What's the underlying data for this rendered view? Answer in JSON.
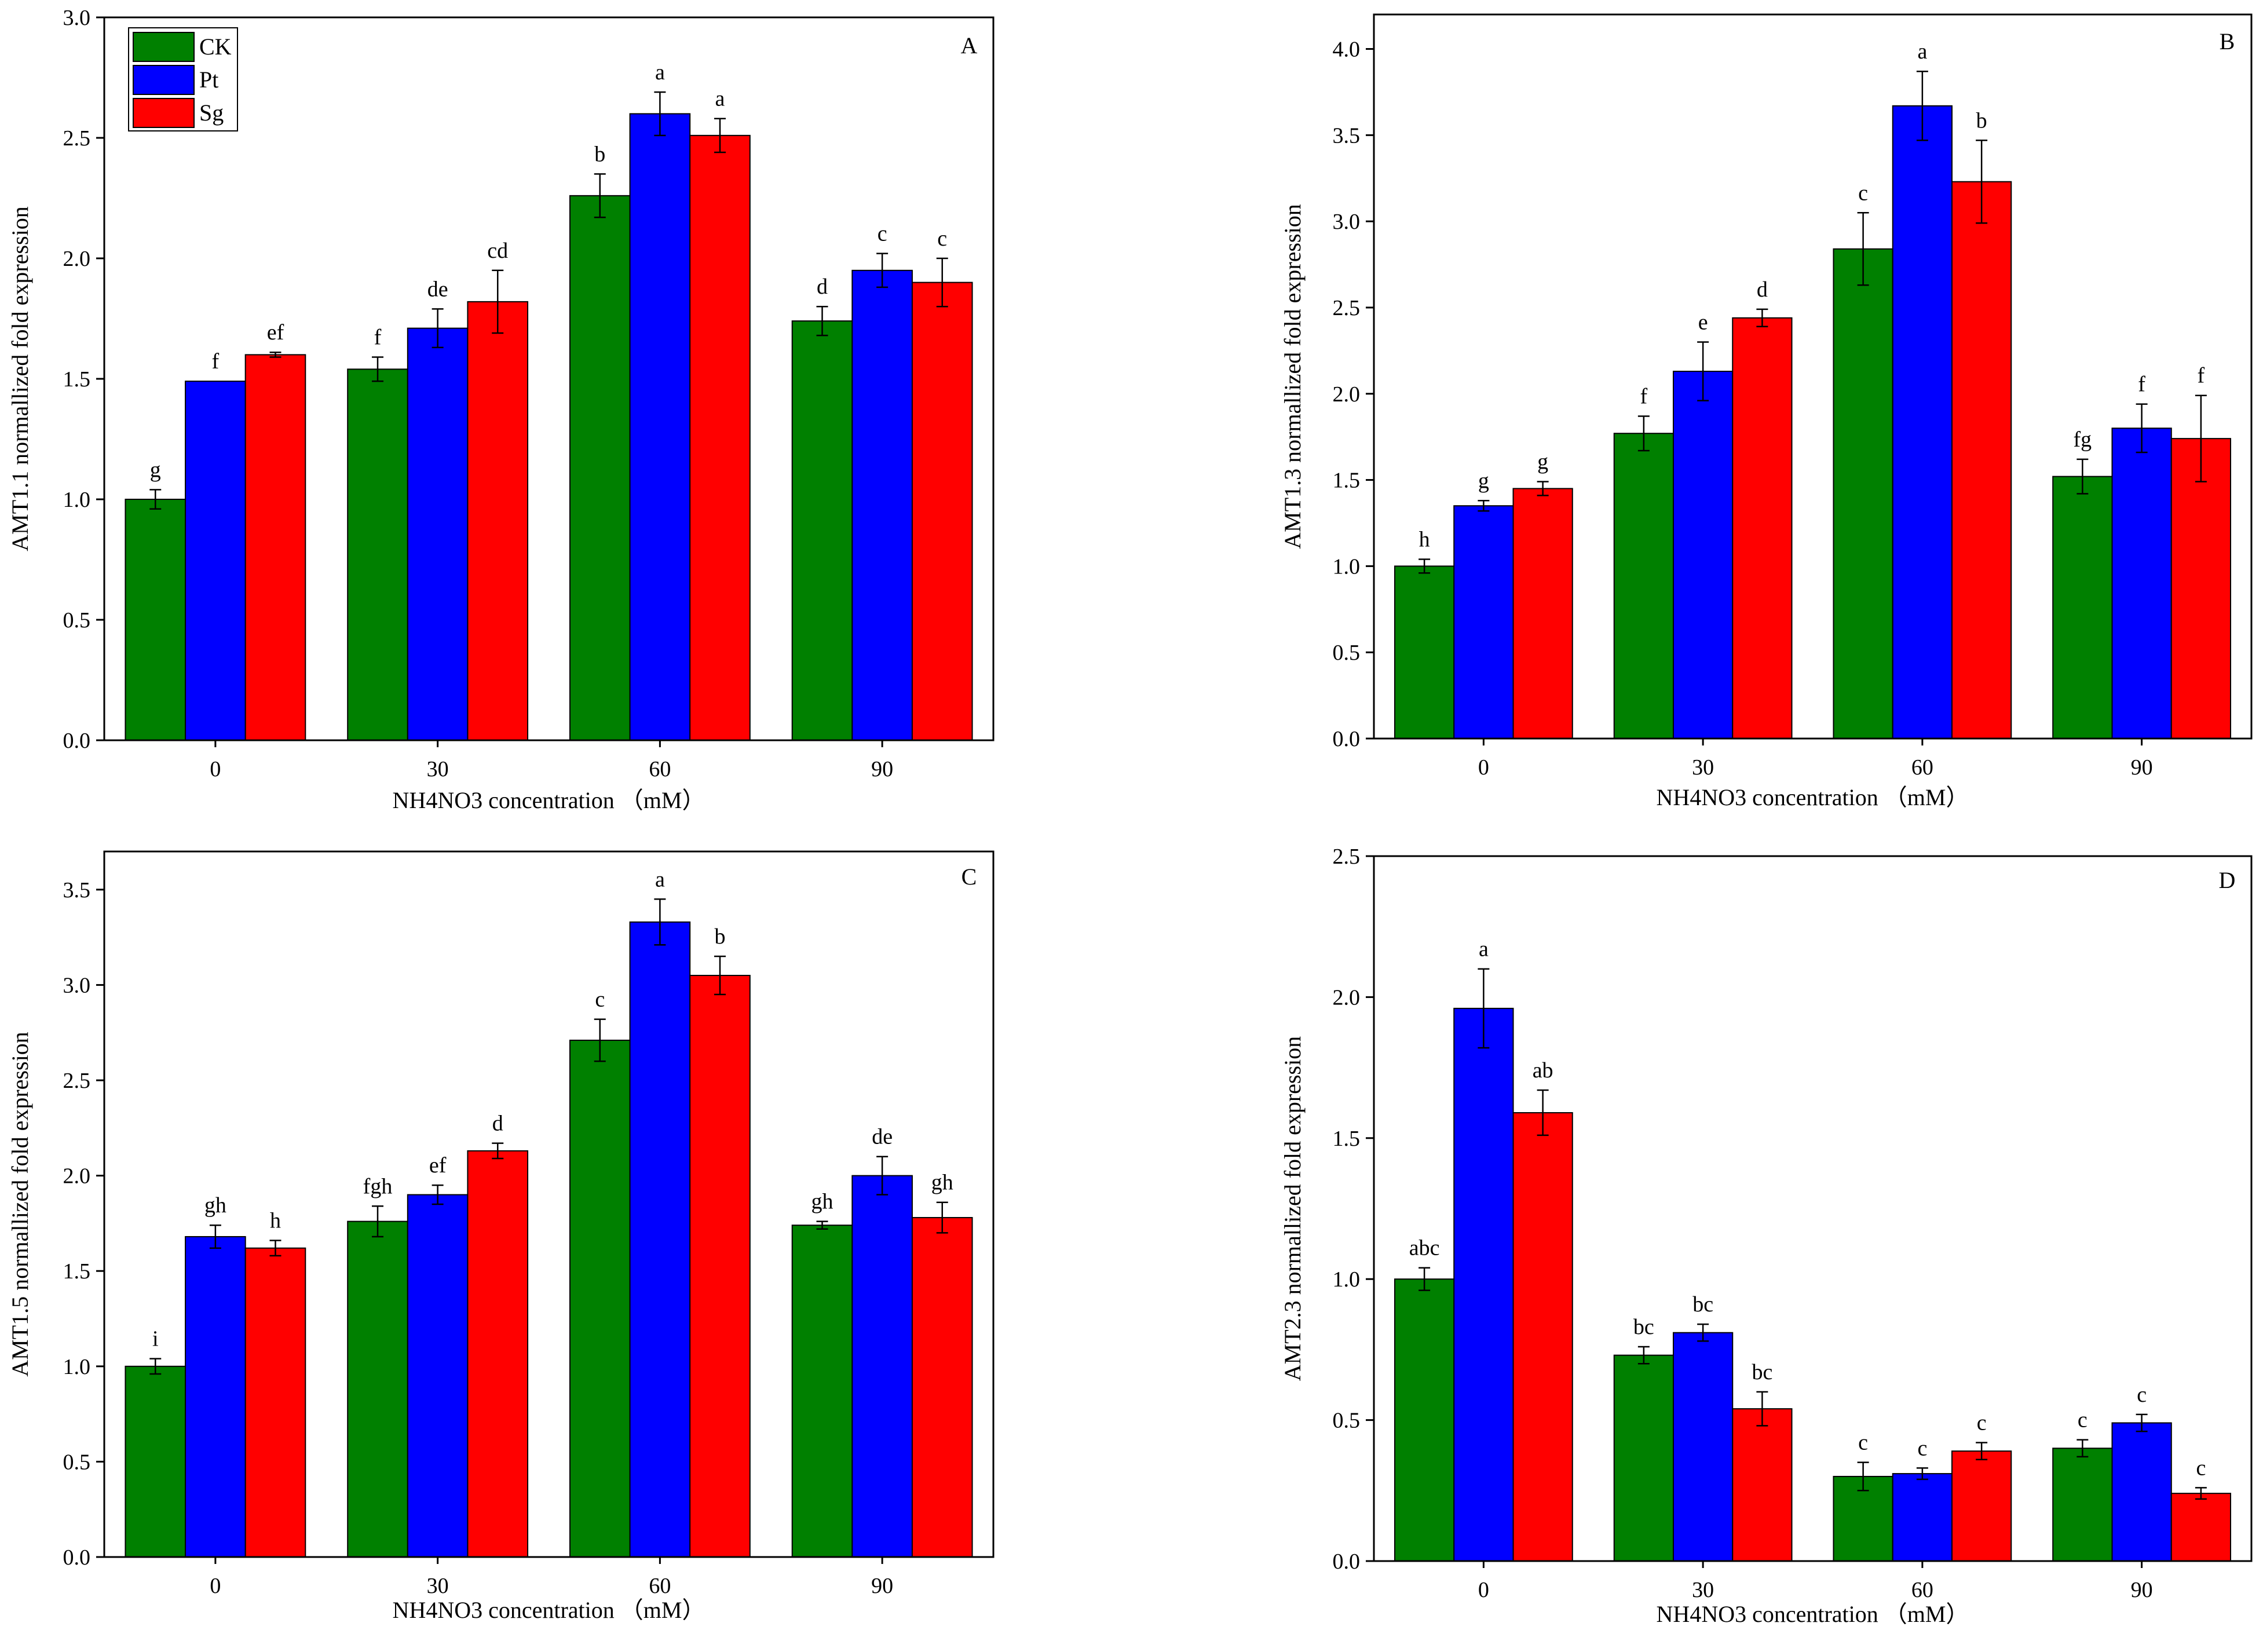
{
  "legend": {
    "series": [
      {
        "name": "CK",
        "color": "#008000"
      },
      {
        "name": "Pt",
        "color": "#0000ff"
      },
      {
        "name": "Sg",
        "color": "#ff0000"
      }
    ]
  },
  "chart_data": [
    {
      "type": "bar",
      "panel": "A",
      "ylabel": "AMT1.1 normallized fold expression",
      "xlabel": "NH4NO3 concentration （mM）",
      "categories": [
        "0",
        "30",
        "60",
        "90"
      ],
      "ylim": [
        0,
        3.0
      ],
      "yticks": [
        "0.0",
        "0.5",
        "1.0",
        "1.5",
        "2.0",
        "2.5",
        "3.0"
      ],
      "series": [
        {
          "name": "CK",
          "values": [
            1.0,
            1.54,
            2.26,
            1.74
          ],
          "errors": [
            0.04,
            0.05,
            0.09,
            0.06
          ],
          "letters": [
            "g",
            "f",
            "b",
            "d"
          ]
        },
        {
          "name": "Pt",
          "values": [
            1.49,
            1.71,
            2.6,
            1.95
          ],
          "errors": [
            0.0,
            0.08,
            0.09,
            0.07
          ],
          "letters": [
            "f",
            "de",
            "a",
            "c"
          ]
        },
        {
          "name": "Sg",
          "values": [
            1.6,
            1.82,
            2.51,
            1.9
          ],
          "errors": [
            0.01,
            0.13,
            0.07,
            0.1
          ],
          "letters": [
            "ef",
            "cd",
            "a",
            "c"
          ]
        }
      ]
    },
    {
      "type": "bar",
      "panel": "B",
      "ylabel": "AMT1.3 normallized fold expression",
      "xlabel": "NH4NO3 concentration （mM）",
      "categories": [
        "0",
        "30",
        "60",
        "90"
      ],
      "ylim": [
        0,
        4.2
      ],
      "yticks": [
        "0.0",
        "0.5",
        "1.0",
        "1.5",
        "2.0",
        "2.5",
        "3.0",
        "3.5",
        "4.0"
      ],
      "series": [
        {
          "name": "CK",
          "values": [
            1.0,
            1.77,
            2.84,
            1.52
          ],
          "errors": [
            0.04,
            0.1,
            0.21,
            0.1
          ],
          "letters": [
            "h",
            "f",
            "c",
            "fg"
          ]
        },
        {
          "name": "Pt",
          "values": [
            1.35,
            2.13,
            3.67,
            1.8
          ],
          "errors": [
            0.03,
            0.17,
            0.2,
            0.14
          ],
          "letters": [
            "g",
            "e",
            "a",
            "f"
          ]
        },
        {
          "name": "Sg",
          "values": [
            1.45,
            2.44,
            3.23,
            1.74
          ],
          "errors": [
            0.04,
            0.05,
            0.24,
            0.25
          ],
          "letters": [
            "g",
            "d",
            "b",
            "f"
          ]
        }
      ]
    },
    {
      "type": "bar",
      "panel": "C",
      "ylabel": "AMT1.5 normallized fold expression",
      "xlabel": "NH4NO3 concentration （mM）",
      "categories": [
        "0",
        "30",
        "60",
        "90"
      ],
      "ylim": [
        0,
        3.7
      ],
      "yticks": [
        "0.0",
        "0.5",
        "1.0",
        "1.5",
        "2.0",
        "2.5",
        "3.0",
        "3.5"
      ],
      "series": [
        {
          "name": "CK",
          "values": [
            1.0,
            1.76,
            2.71,
            1.74
          ],
          "errors": [
            0.04,
            0.08,
            0.11,
            0.02
          ],
          "letters": [
            "i",
            "fgh",
            "c",
            "gh"
          ]
        },
        {
          "name": "Pt",
          "values": [
            1.68,
            1.9,
            3.33,
            2.0
          ],
          "errors": [
            0.06,
            0.05,
            0.12,
            0.1
          ],
          "letters": [
            "gh",
            "ef",
            "a",
            "de"
          ]
        },
        {
          "name": "Sg",
          "values": [
            1.62,
            2.13,
            3.05,
            1.78
          ],
          "errors": [
            0.04,
            0.04,
            0.1,
            0.08
          ],
          "letters": [
            "h",
            "d",
            "b",
            "gh"
          ]
        }
      ]
    },
    {
      "type": "bar",
      "panel": "D",
      "ylabel": "AMT2.3 normallized fold expression",
      "xlabel": "NH4NO3 concentration （mM）",
      "categories": [
        "0",
        "30",
        "60",
        "90"
      ],
      "ylim": [
        0,
        2.5
      ],
      "yticks": [
        "0.0",
        "0.5",
        "1.0",
        "1.5",
        "2.0",
        "2.5"
      ],
      "series": [
        {
          "name": "CK",
          "values": [
            1.0,
            0.73,
            0.3,
            0.4
          ],
          "errors": [
            0.04,
            0.03,
            0.05,
            0.03
          ],
          "letters": [
            "abc",
            "bc",
            "c",
            "c"
          ]
        },
        {
          "name": "Pt",
          "values": [
            1.96,
            0.81,
            0.31,
            0.49
          ],
          "errors": [
            0.14,
            0.03,
            0.02,
            0.03
          ],
          "letters": [
            "a",
            "bc",
            "c",
            "c"
          ]
        },
        {
          "name": "Sg",
          "values": [
            1.59,
            0.54,
            0.39,
            0.24
          ],
          "errors": [
            0.08,
            0.06,
            0.03,
            0.02
          ],
          "letters": [
            "ab",
            "bc",
            "c",
            "c"
          ]
        }
      ]
    }
  ]
}
